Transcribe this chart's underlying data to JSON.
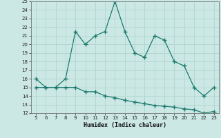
{
  "title": "",
  "xlabel": "Humidex (Indice chaleur)",
  "x_values": [
    5,
    6,
    7,
    8,
    9,
    10,
    11,
    12,
    13,
    14,
    15,
    16,
    17,
    18,
    19,
    20,
    21,
    22,
    23
  ],
  "y_line1": [
    16,
    15,
    15,
    16,
    21.5,
    20,
    21,
    21.5,
    25,
    21.5,
    19,
    18.5,
    21,
    20.5,
    18,
    17.5,
    15,
    14,
    15
  ],
  "y_line2": [
    15,
    15,
    15,
    15,
    15,
    14.5,
    14.5,
    14,
    13.8,
    13.5,
    13.3,
    13.1,
    12.9,
    12.8,
    12.7,
    12.5,
    12.4,
    12,
    12.2
  ],
  "line_color": "#1a7a6e",
  "bg_color": "#cce8e4",
  "grid_color": "#b0d4cf",
  "ylim": [
    12,
    25
  ],
  "xlim": [
    4.5,
    23.5
  ],
  "yticks": [
    12,
    13,
    14,
    15,
    16,
    17,
    18,
    19,
    20,
    21,
    22,
    23,
    24,
    25
  ],
  "xticks": [
    5,
    6,
    7,
    8,
    9,
    10,
    11,
    12,
    13,
    14,
    15,
    16,
    17,
    18,
    19,
    20,
    21,
    22,
    23
  ],
  "marker": "+",
  "linewidth": 0.9,
  "markersize": 4
}
